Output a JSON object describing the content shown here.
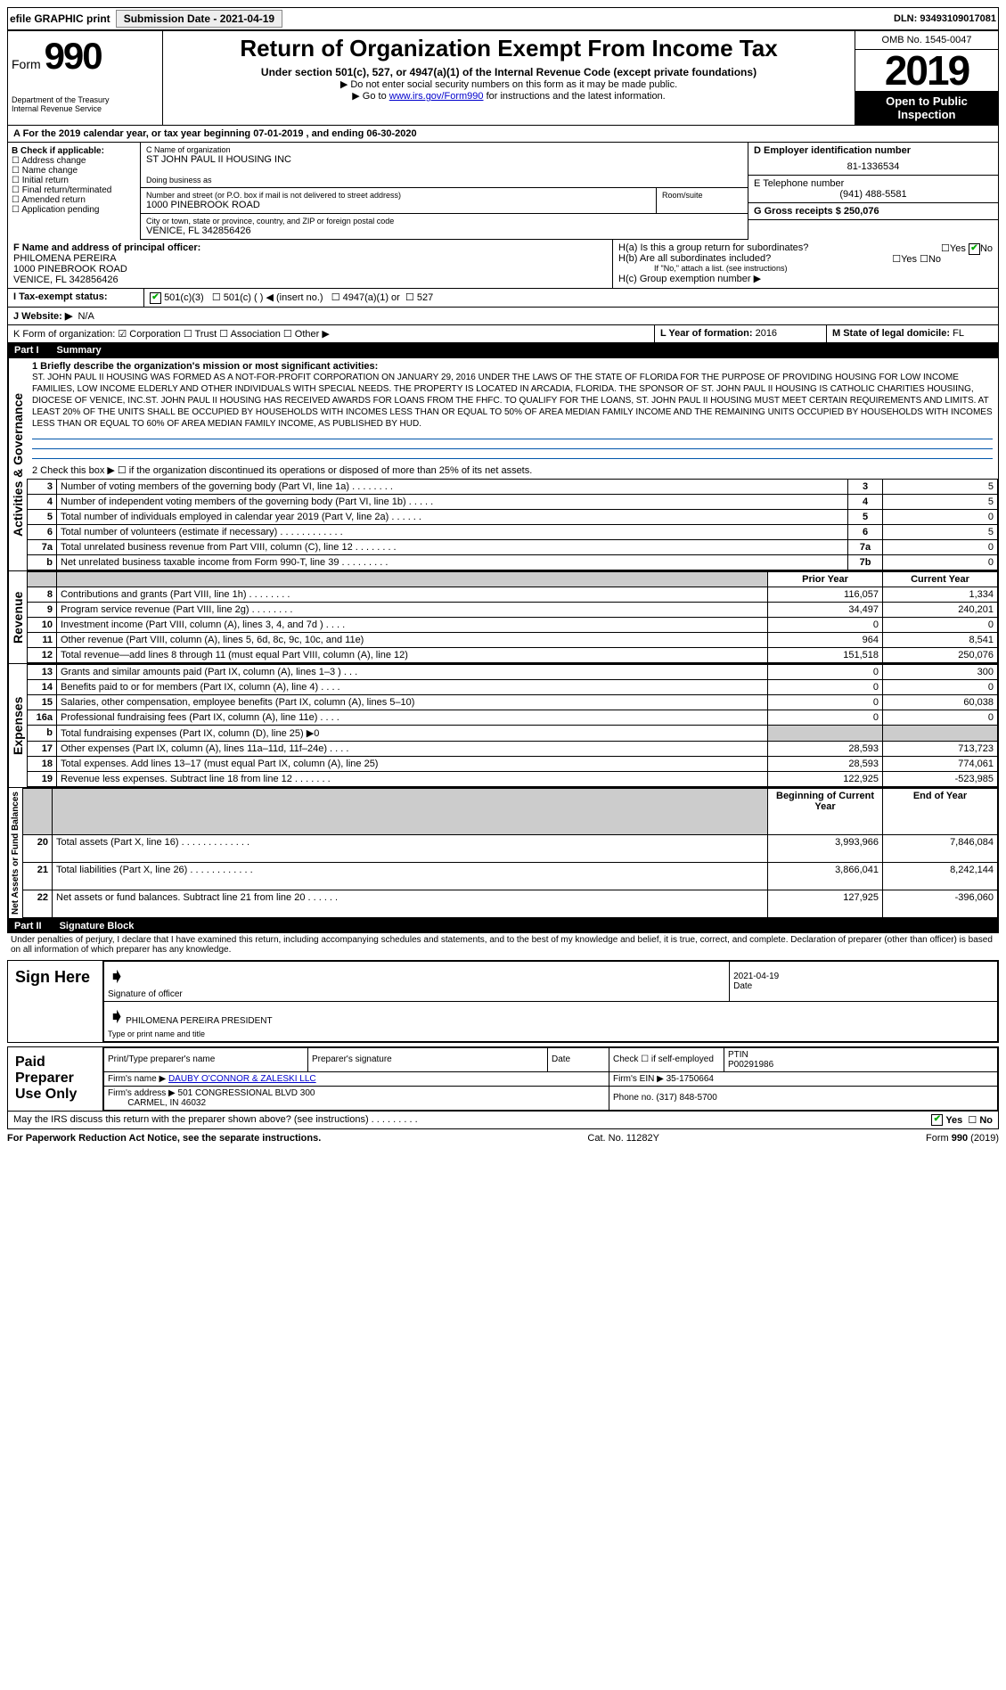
{
  "top": {
    "efile": "efile GRAPHIC print",
    "submission_label": "Submission Date - 2021-04-19",
    "dln": "DLN: 93493109017081"
  },
  "header": {
    "form_prefix": "Form",
    "form_number": "990",
    "dept": "Department of the Treasury",
    "irs": "Internal Revenue Service",
    "title": "Return of Organization Exempt From Income Tax",
    "subtitle": "Under section 501(c), 527, or 4947(a)(1) of the Internal Revenue Code (except private foundations)",
    "note1": "▶ Do not enter social security numbers on this form as it may be made public.",
    "note2_pre": "▶ Go to ",
    "note2_link": "www.irs.gov/Form990",
    "note2_post": " for instructions and the latest information.",
    "omb": "OMB No. 1545-0047",
    "year": "2019",
    "inspection": "Open to Public Inspection"
  },
  "period": "A For the 2019 calendar year, or tax year beginning 07-01-2019   , and ending 06-30-2020",
  "checkboxes": {
    "label": "B Check if applicable:",
    "items": [
      "Address change",
      "Name change",
      "Initial return",
      "Final return/terminated",
      "Amended return",
      "Application pending"
    ]
  },
  "entity": {
    "c_label": "C Name of organization",
    "name": "ST JOHN PAUL II HOUSING INC",
    "dba_label": "Doing business as",
    "dba": "",
    "addr_label": "Number and street (or P.O. box if mail is not delivered to street address)",
    "addr": "1000 PINEBROOK ROAD",
    "room_label": "Room/suite",
    "city_label": "City or town, state or province, country, and ZIP or foreign postal code",
    "city": "VENICE, FL  342856426",
    "d_label": "D Employer identification number",
    "ein": "81-1336534",
    "e_label": "E Telephone number",
    "phone": "(941) 488-5581",
    "g_label": "G Gross receipts $ 250,076",
    "f_label": "F  Name and address of principal officer:",
    "officer": "PHILOMENA PEREIRA\n1000 PINEBROOK ROAD\nVENICE, FL  342856426",
    "ha": "H(a)  Is this a group return for subordinates?",
    "hb": "H(b)  Are all subordinates included?",
    "hb_note": "If \"No,\" attach a list. (see instructions)",
    "hc": "H(c)  Group exemption number ▶",
    "ha_yes": "Yes",
    "ha_no": "No",
    "hb_yes": "Yes",
    "hb_no": "No"
  },
  "tax_status": {
    "label": "I  Tax-exempt status:",
    "opt1": "501(c)(3)",
    "opt2": "501(c) (  ) ◀ (insert no.)",
    "opt3": "4947(a)(1) or",
    "opt4": "527"
  },
  "website": {
    "label": "J  Website: ▶",
    "value": "N/A"
  },
  "k_line": "K Form of organization:  ☑ Corporation ☐ Trust ☐ Association ☐ Other ▶",
  "l_line": {
    "label": "L Year of formation:",
    "value": "2016"
  },
  "m_line": {
    "label": "M State of legal domicile:",
    "value": "FL"
  },
  "part1": {
    "title": "Part I",
    "subtitle": "Summary",
    "line1_label": "1  Briefly describe the organization's mission or most significant activities:",
    "mission": "ST. JOHN PAUL II HOUSING WAS FORMED AS A NOT-FOR-PROFIT CORPORATION ON JANUARY 29, 2016 UNDER THE LAWS OF THE STATE OF FLORIDA FOR THE PURPOSE OF PROVIDING HOUSING FOR LOW INCOME FAMILIES, LOW INCOME ELDERLY AND OTHER INDIVIDUALS WITH SPECIAL NEEDS. THE PROPERTY IS LOCATED IN ARCADIA, FLORIDA. THE SPONSOR OF ST. JOHN PAUL II HOUSING IS CATHOLIC CHARITIES HOUSIING, DIOCESE OF VENICE, INC.ST. JOHN PAUL II HOUSING HAS RECEIVED AWARDS FOR LOANS FROM THE FHFC. TO QUALIFY FOR THE LOANS, ST. JOHN PAUL II HOUSING MUST MEET CERTAIN REQUIREMENTS AND LIMITS. AT LEAST 20% OF THE UNITS SHALL BE OCCUPIED BY HOUSEHOLDS WITH INCOMES LESS THAN OR EQUAL TO 50% OF AREA MEDIAN FAMILY INCOME AND THE REMAINING UNITS OCCUPIED BY HOUSEHOLDS WITH INCOMES LESS THAN OR EQUAL TO 60% OF AREA MEDIAN FAMILY INCOME, AS PUBLISHED BY HUD.",
    "line2": "2   Check this box ▶ ☐ if the organization discontinued its operations or disposed of more than 25% of its net assets.",
    "rows_gov": [
      {
        "n": "3",
        "label": "Number of voting members of the governing body (Part VI, line 1a)  .   .   .   .   .   .   .   .",
        "box": "3",
        "val": "5"
      },
      {
        "n": "4",
        "label": "Number of independent voting members of the governing body (Part VI, line 1b)   .   .   .   .   .",
        "box": "4",
        "val": "5"
      },
      {
        "n": "5",
        "label": "Total number of individuals employed in calendar year 2019 (Part V, line 2a)  .   .   .   .   .   .",
        "box": "5",
        "val": "0"
      },
      {
        "n": "6",
        "label": "Total number of volunteers (estimate if necessary)  .   .   .   .   .   .   .   .   .   .   .   .",
        "box": "6",
        "val": "5"
      },
      {
        "n": "7a",
        "label": "Total unrelated business revenue from Part VIII, column (C), line 12   .   .   .   .   .   .   .   .",
        "box": "7a",
        "val": "0"
      },
      {
        "n": "b",
        "label": "Net unrelated business taxable income from Form 990-T, line 39   .   .   .   .   .   .   .   .   .",
        "box": "7b",
        "val": "0"
      }
    ],
    "col_headers": {
      "prior": "Prior Year",
      "current": "Current Year"
    },
    "revenue": [
      {
        "n": "8",
        "label": "Contributions and grants (Part VIII, line 1h)  .   .   .   .   .   .   .   .",
        "p": "116,057",
        "c": "1,334"
      },
      {
        "n": "9",
        "label": "Program service revenue (Part VIII, line 2g)  .   .   .   .   .   .   .   .",
        "p": "34,497",
        "c": "240,201"
      },
      {
        "n": "10",
        "label": "Investment income (Part VIII, column (A), lines 3, 4, and 7d )  .   .   .   .",
        "p": "0",
        "c": "0"
      },
      {
        "n": "11",
        "label": "Other revenue (Part VIII, column (A), lines 5, 6d, 8c, 9c, 10c, and 11e)",
        "p": "964",
        "c": "8,541"
      },
      {
        "n": "12",
        "label": "Total revenue—add lines 8 through 11 (must equal Part VIII, column (A), line 12)",
        "p": "151,518",
        "c": "250,076"
      }
    ],
    "expenses": [
      {
        "n": "13",
        "label": "Grants and similar amounts paid (Part IX, column (A), lines 1–3 )  .   .   .",
        "p": "0",
        "c": "300"
      },
      {
        "n": "14",
        "label": "Benefits paid to or for members (Part IX, column (A), line 4)  .   .   .   .",
        "p": "0",
        "c": "0"
      },
      {
        "n": "15",
        "label": "Salaries, other compensation, employee benefits (Part IX, column (A), lines 5–10)",
        "p": "0",
        "c": "60,038"
      },
      {
        "n": "16a",
        "label": "Professional fundraising fees (Part IX, column (A), line 11e)  .   .   .   .",
        "p": "0",
        "c": "0"
      },
      {
        "n": "b",
        "label": "Total fundraising expenses (Part IX, column (D), line 25) ▶0",
        "p": "",
        "c": "",
        "shaded": true
      },
      {
        "n": "17",
        "label": "Other expenses (Part IX, column (A), lines 11a–11d, 11f–24e)   .   .   .   .",
        "p": "28,593",
        "c": "713,723"
      },
      {
        "n": "18",
        "label": "Total expenses. Add lines 13–17 (must equal Part IX, column (A), line 25)",
        "p": "28,593",
        "c": "774,061"
      },
      {
        "n": "19",
        "label": "Revenue less expenses. Subtract line 18 from line 12  .   .   .   .   .   .   .",
        "p": "122,925",
        "c": "-523,985"
      }
    ],
    "net_headers": {
      "begin": "Beginning of Current Year",
      "end": "End of Year"
    },
    "netassets": [
      {
        "n": "20",
        "label": "Total assets (Part X, line 16)  .   .   .   .   .   .   .   .   .   .   .   .   .",
        "p": "3,993,966",
        "c": "7,846,084"
      },
      {
        "n": "21",
        "label": "Total liabilities (Part X, line 26)  .   .   .   .   .   .   .   .   .   .   .   .",
        "p": "3,866,041",
        "c": "8,242,144"
      },
      {
        "n": "22",
        "label": "Net assets or fund balances. Subtract line 21 from line 20  .   .   .   .   .   .",
        "p": "127,925",
        "c": "-396,060"
      }
    ],
    "vlabels": {
      "gov": "Activities & Governance",
      "rev": "Revenue",
      "exp": "Expenses",
      "net": "Net Assets or Fund Balances"
    }
  },
  "part2": {
    "title": "Part II",
    "subtitle": "Signature Block",
    "jurat": "Under penalties of perjury, I declare that I have examined this return, including accompanying schedules and statements, and to the best of my knowledge and belief, it is true, correct, and complete. Declaration of preparer (other than officer) is based on all information of which preparer has any knowledge.",
    "sign_here": "Sign Here",
    "sig_officer": "Signature of officer",
    "sig_date_label": "Date",
    "sig_date": "2021-04-19",
    "officer_name": "PHILOMENA PEREIRA  PRESIDENT",
    "officer_title_label": "Type or print name and title",
    "paid_label": "Paid Preparer Use Only",
    "prep_name_label": "Print/Type preparer's name",
    "prep_sig_label": "Preparer's signature",
    "prep_date_label": "Date",
    "prep_check": "Check ☐ if self-employed",
    "ptin_label": "PTIN",
    "ptin": "P00291986",
    "firm_name_label": "Firm's name    ▶",
    "firm_name": "DAUBY O'CONNOR & ZALESKI LLC",
    "firm_ein_label": "Firm's EIN ▶",
    "firm_ein": "35-1750664",
    "firm_addr_label": "Firm's address ▶",
    "firm_addr": "501 CONGRESSIONAL BLVD 300",
    "firm_city": "CARMEL, IN  46032",
    "firm_phone_label": "Phone no.",
    "firm_phone": "(317) 848-5700",
    "discuss": "May the IRS discuss this return with the preparer shown above? (see instructions)   .   .   .   .   .   .   .   .   .",
    "discuss_yes": "Yes",
    "discuss_no": "No"
  },
  "footer": {
    "pra": "For Paperwork Reduction Act Notice, see the separate instructions.",
    "cat": "Cat. No. 11282Y",
    "form": "Form 990 (2019)"
  }
}
